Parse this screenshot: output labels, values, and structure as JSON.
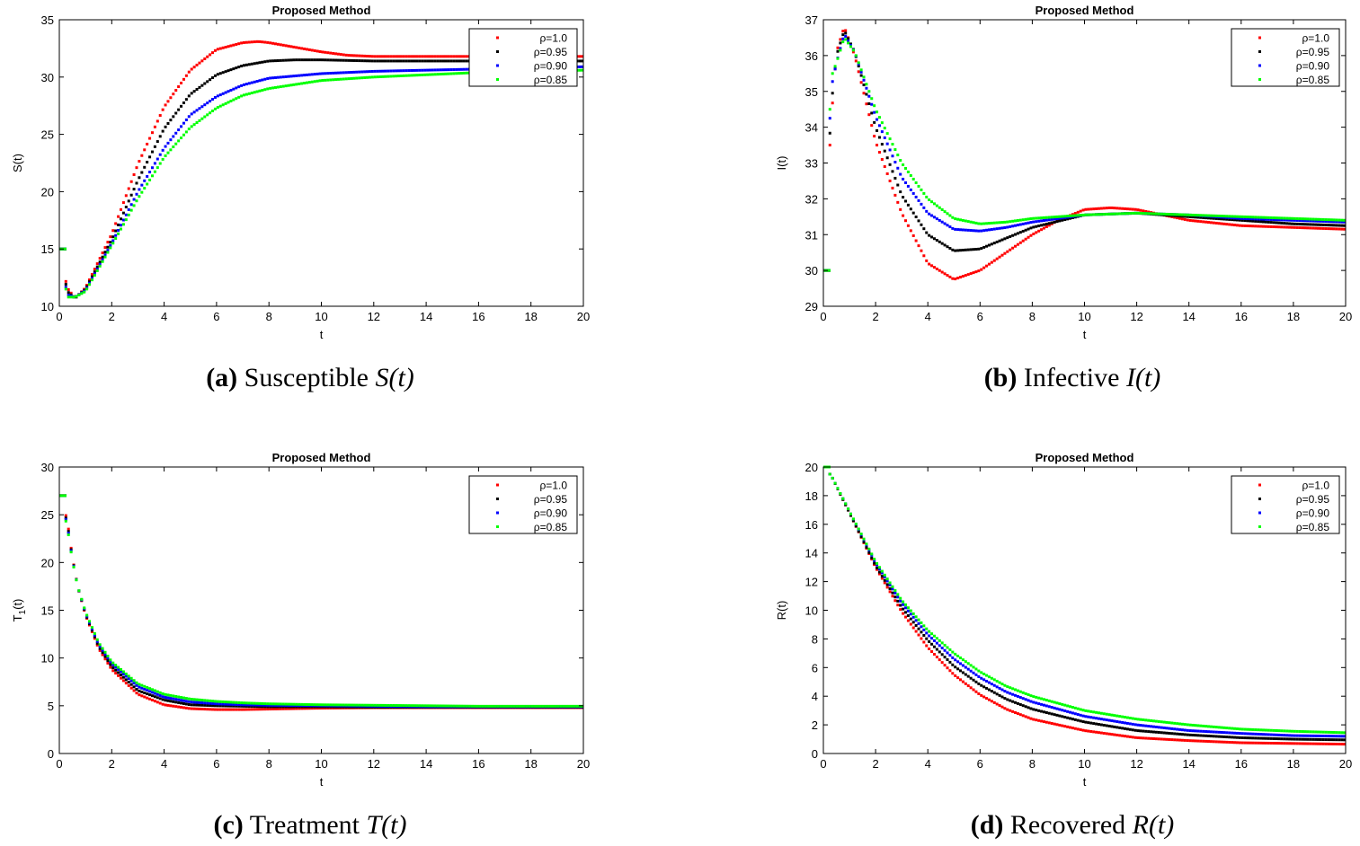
{
  "chart_data": [
    {
      "type": "scatter",
      "id": "a",
      "title": "Proposed Method",
      "xlabel": "t",
      "ylabel": "S(t)",
      "xlim": [
        0,
        20
      ],
      "ylim": [
        10,
        35
      ],
      "xticks": [
        0,
        2,
        4,
        6,
        8,
        10,
        12,
        14,
        16,
        18,
        20
      ],
      "yticks": [
        10,
        15,
        20,
        25,
        30,
        35
      ],
      "legend_position": "top-right",
      "caption": {
        "letter": "(a)",
        "text": "Susceptible",
        "var": "S",
        "arg": "(t)"
      },
      "series": [
        {
          "name": "ρ=1.0",
          "color": "#ff0000",
          "x": [
            0,
            0.3,
            0.6,
            1,
            2,
            3,
            4,
            5,
            6,
            7,
            7.6,
            8,
            9,
            10,
            11,
            12,
            14,
            16,
            18,
            20
          ],
          "y": [
            15,
            11.6,
            10.7,
            11.6,
            16.3,
            22.4,
            27.4,
            30.6,
            32.4,
            33.0,
            33.1,
            33.0,
            32.6,
            32.2,
            31.9,
            31.8,
            31.8,
            31.8,
            31.8,
            31.8
          ]
        },
        {
          "name": "ρ=0.95",
          "color": "#000000",
          "x": [
            0,
            0.3,
            0.6,
            1,
            2,
            3,
            4,
            5,
            6,
            7,
            8,
            9,
            10,
            12,
            14,
            16,
            18,
            20
          ],
          "y": [
            15,
            11.3,
            10.7,
            11.5,
            15.8,
            21.0,
            25.5,
            28.5,
            30.2,
            31.0,
            31.4,
            31.5,
            31.5,
            31.4,
            31.4,
            31.4,
            31.4,
            31.4
          ]
        },
        {
          "name": "ρ=0.90",
          "color": "#0000ff",
          "x": [
            0,
            0.3,
            0.6,
            1,
            2,
            3,
            4,
            5,
            6,
            7,
            8,
            10,
            12,
            14,
            16,
            18,
            20
          ],
          "y": [
            15,
            11.0,
            10.8,
            11.4,
            15.5,
            20.0,
            23.8,
            26.7,
            28.3,
            29.3,
            29.9,
            30.3,
            30.5,
            30.6,
            30.7,
            30.8,
            30.9
          ]
        },
        {
          "name": "ρ=0.85",
          "color": "#00ff00",
          "x": [
            0,
            0.3,
            0.6,
            1,
            2,
            3,
            4,
            5,
            6,
            7,
            8,
            10,
            12,
            14,
            16,
            18,
            20
          ],
          "y": [
            15,
            10.8,
            10.8,
            11.3,
            15.3,
            19.4,
            23.0,
            25.6,
            27.3,
            28.4,
            29.0,
            29.7,
            30.0,
            30.2,
            30.4,
            30.5,
            30.6
          ]
        }
      ]
    },
    {
      "type": "scatter",
      "id": "b",
      "title": "Proposed Method",
      "xlabel": "t",
      "ylabel": "I(t)",
      "xlim": [
        0,
        20
      ],
      "ylim": [
        29,
        37
      ],
      "xticks": [
        0,
        2,
        4,
        6,
        8,
        10,
        12,
        14,
        16,
        18,
        20
      ],
      "yticks": [
        29,
        30,
        31,
        32,
        33,
        34,
        35,
        36,
        37
      ],
      "legend_position": "top-right",
      "caption": {
        "letter": "(b)",
        "text": "Infective",
        "var": "I",
        "arg": "(t)"
      },
      "series": [
        {
          "name": "ρ=1.0",
          "color": "#ff0000",
          "x": [
            0,
            0.3,
            0.5,
            0.8,
            1.2,
            2,
            3,
            4,
            5,
            6,
            7,
            8,
            9,
            10,
            11,
            12,
            13,
            14,
            16,
            18,
            20
          ],
          "y": [
            30,
            34.2,
            36.1,
            36.8,
            36.0,
            33.6,
            31.6,
            30.2,
            29.75,
            30.0,
            30.5,
            31.0,
            31.4,
            31.7,
            31.75,
            31.7,
            31.55,
            31.4,
            31.25,
            31.2,
            31.15
          ]
        },
        {
          "name": "ρ=0.95",
          "color": "#000000",
          "x": [
            0,
            0.3,
            0.5,
            0.8,
            1.2,
            2,
            3,
            4,
            5,
            6,
            7,
            8,
            10,
            12,
            14,
            16,
            18,
            20
          ],
          "y": [
            30,
            34.6,
            36.0,
            36.7,
            36.1,
            34.0,
            32.1,
            31.0,
            30.55,
            30.6,
            30.9,
            31.2,
            31.55,
            31.6,
            31.5,
            31.4,
            31.3,
            31.25
          ]
        },
        {
          "name": "ρ=0.90",
          "color": "#0000ff",
          "x": [
            0,
            0.3,
            0.5,
            0.8,
            1.2,
            2,
            3,
            4,
            5,
            6,
            7,
            8,
            10,
            12,
            14,
            16,
            18,
            20
          ],
          "y": [
            30,
            35.1,
            35.8,
            36.6,
            36.1,
            34.3,
            32.6,
            31.6,
            31.15,
            31.1,
            31.2,
            31.35,
            31.55,
            31.6,
            31.55,
            31.45,
            31.4,
            31.35
          ]
        },
        {
          "name": "ρ=0.85",
          "color": "#00ff00",
          "x": [
            0,
            0.3,
            0.5,
            0.8,
            1.2,
            2,
            3,
            4,
            5,
            6,
            7,
            8,
            10,
            12,
            14,
            16,
            18,
            20
          ],
          "y": [
            30,
            35.4,
            35.8,
            36.5,
            36.1,
            34.5,
            33.0,
            32.0,
            31.45,
            31.3,
            31.35,
            31.45,
            31.55,
            31.6,
            31.55,
            31.5,
            31.45,
            31.4
          ]
        }
      ]
    },
    {
      "type": "scatter",
      "id": "c",
      "title": "Proposed Method",
      "xlabel": "t",
      "ylabel": "T1(t)",
      "xlim": [
        0,
        20
      ],
      "ylim": [
        0,
        30
      ],
      "xticks": [
        0,
        2,
        4,
        6,
        8,
        10,
        12,
        14,
        16,
        18,
        20
      ],
      "yticks": [
        0,
        5,
        10,
        15,
        20,
        25,
        30
      ],
      "legend_position": "top-right",
      "caption": {
        "letter": "(c)",
        "text": "Treatment",
        "var": "T",
        "arg": "(t)"
      },
      "series": [
        {
          "name": "ρ=1.0",
          "color": "#ff0000",
          "x": [
            0,
            0.3,
            0.5,
            0.7,
            1,
            1.5,
            2,
            3,
            4,
            5,
            6,
            7,
            8,
            10,
            12,
            14,
            16,
            18,
            20
          ],
          "y": [
            27,
            24.5,
            20.5,
            17.5,
            14.5,
            11.0,
            8.8,
            6.2,
            5.1,
            4.7,
            4.6,
            4.6,
            4.65,
            4.75,
            4.8,
            4.8,
            4.8,
            4.8,
            4.8
          ]
        },
        {
          "name": "ρ=0.95",
          "color": "#000000",
          "x": [
            0,
            0.3,
            0.5,
            0.7,
            1,
            1.5,
            2,
            3,
            4,
            5,
            6,
            7,
            8,
            10,
            12,
            14,
            16,
            18,
            20
          ],
          "y": [
            27,
            24.2,
            20.4,
            17.5,
            14.6,
            11.2,
            9.1,
            6.6,
            5.6,
            5.1,
            5.0,
            4.95,
            4.9,
            4.9,
            4.85,
            4.85,
            4.85,
            4.85,
            4.85
          ]
        },
        {
          "name": "ρ=0.90",
          "color": "#0000ff",
          "x": [
            0,
            0.3,
            0.5,
            0.7,
            1,
            1.5,
            2,
            3,
            4,
            5,
            6,
            7,
            8,
            10,
            12,
            14,
            16,
            18,
            20
          ],
          "y": [
            27,
            24.0,
            20.3,
            17.5,
            14.7,
            11.4,
            9.4,
            7.0,
            5.9,
            5.4,
            5.2,
            5.1,
            5.05,
            5.0,
            4.95,
            4.9,
            4.9,
            4.9,
            4.9
          ]
        },
        {
          "name": "ρ=0.85",
          "color": "#00ff00",
          "x": [
            0,
            0.3,
            0.5,
            0.7,
            1,
            1.5,
            2,
            3,
            4,
            5,
            6,
            7,
            8,
            10,
            12,
            14,
            16,
            18,
            20
          ],
          "y": [
            27,
            23.8,
            20.2,
            17.5,
            14.8,
            11.6,
            9.6,
            7.3,
            6.2,
            5.7,
            5.45,
            5.3,
            5.2,
            5.1,
            5.05,
            5.0,
            4.95,
            4.95,
            4.95
          ]
        }
      ]
    },
    {
      "type": "scatter",
      "id": "d",
      "title": "Proposed Method",
      "xlabel": "t",
      "ylabel": "R(t)",
      "xlim": [
        0,
        20
      ],
      "ylim": [
        0,
        20
      ],
      "xticks": [
        0,
        2,
        4,
        6,
        8,
        10,
        12,
        14,
        16,
        18,
        20
      ],
      "yticks": [
        0,
        2,
        4,
        6,
        8,
        10,
        12,
        14,
        16,
        18,
        20
      ],
      "legend_position": "top-right",
      "caption": {
        "letter": "(d)",
        "text": "Recovered",
        "var": "R",
        "arg": "(t)"
      },
      "series": [
        {
          "name": "ρ=1.0",
          "color": "#ff0000",
          "x": [
            0,
            0.3,
            1,
            2,
            3,
            4,
            5,
            6,
            7,
            8,
            10,
            12,
            14,
            16,
            18,
            20
          ],
          "y": [
            20,
            19.4,
            16.8,
            13.0,
            9.9,
            7.4,
            5.5,
            4.1,
            3.1,
            2.4,
            1.6,
            1.1,
            0.9,
            0.75,
            0.7,
            0.65
          ]
        },
        {
          "name": "ρ=0.95",
          "color": "#000000",
          "x": [
            0,
            0.3,
            1,
            2,
            3,
            4,
            5,
            6,
            7,
            8,
            10,
            12,
            14,
            16,
            18,
            20
          ],
          "y": [
            20,
            19.4,
            16.8,
            13.1,
            10.2,
            7.9,
            6.1,
            4.8,
            3.8,
            3.1,
            2.2,
            1.6,
            1.3,
            1.1,
            1.0,
            0.95
          ]
        },
        {
          "name": "ρ=0.90",
          "color": "#0000ff",
          "x": [
            0,
            0.3,
            1,
            2,
            3,
            4,
            5,
            6,
            7,
            8,
            10,
            12,
            14,
            16,
            18,
            20
          ],
          "y": [
            20,
            19.4,
            16.9,
            13.3,
            10.5,
            8.3,
            6.6,
            5.3,
            4.3,
            3.6,
            2.6,
            2.0,
            1.6,
            1.4,
            1.25,
            1.2
          ]
        },
        {
          "name": "ρ=0.85",
          "color": "#00ff00",
          "x": [
            0,
            0.3,
            1,
            2,
            3,
            4,
            5,
            6,
            7,
            8,
            10,
            12,
            14,
            16,
            18,
            20
          ],
          "y": [
            20,
            19.4,
            16.9,
            13.4,
            10.7,
            8.6,
            7.0,
            5.7,
            4.7,
            4.0,
            3.0,
            2.4,
            2.0,
            1.7,
            1.55,
            1.45
          ]
        }
      ]
    }
  ]
}
